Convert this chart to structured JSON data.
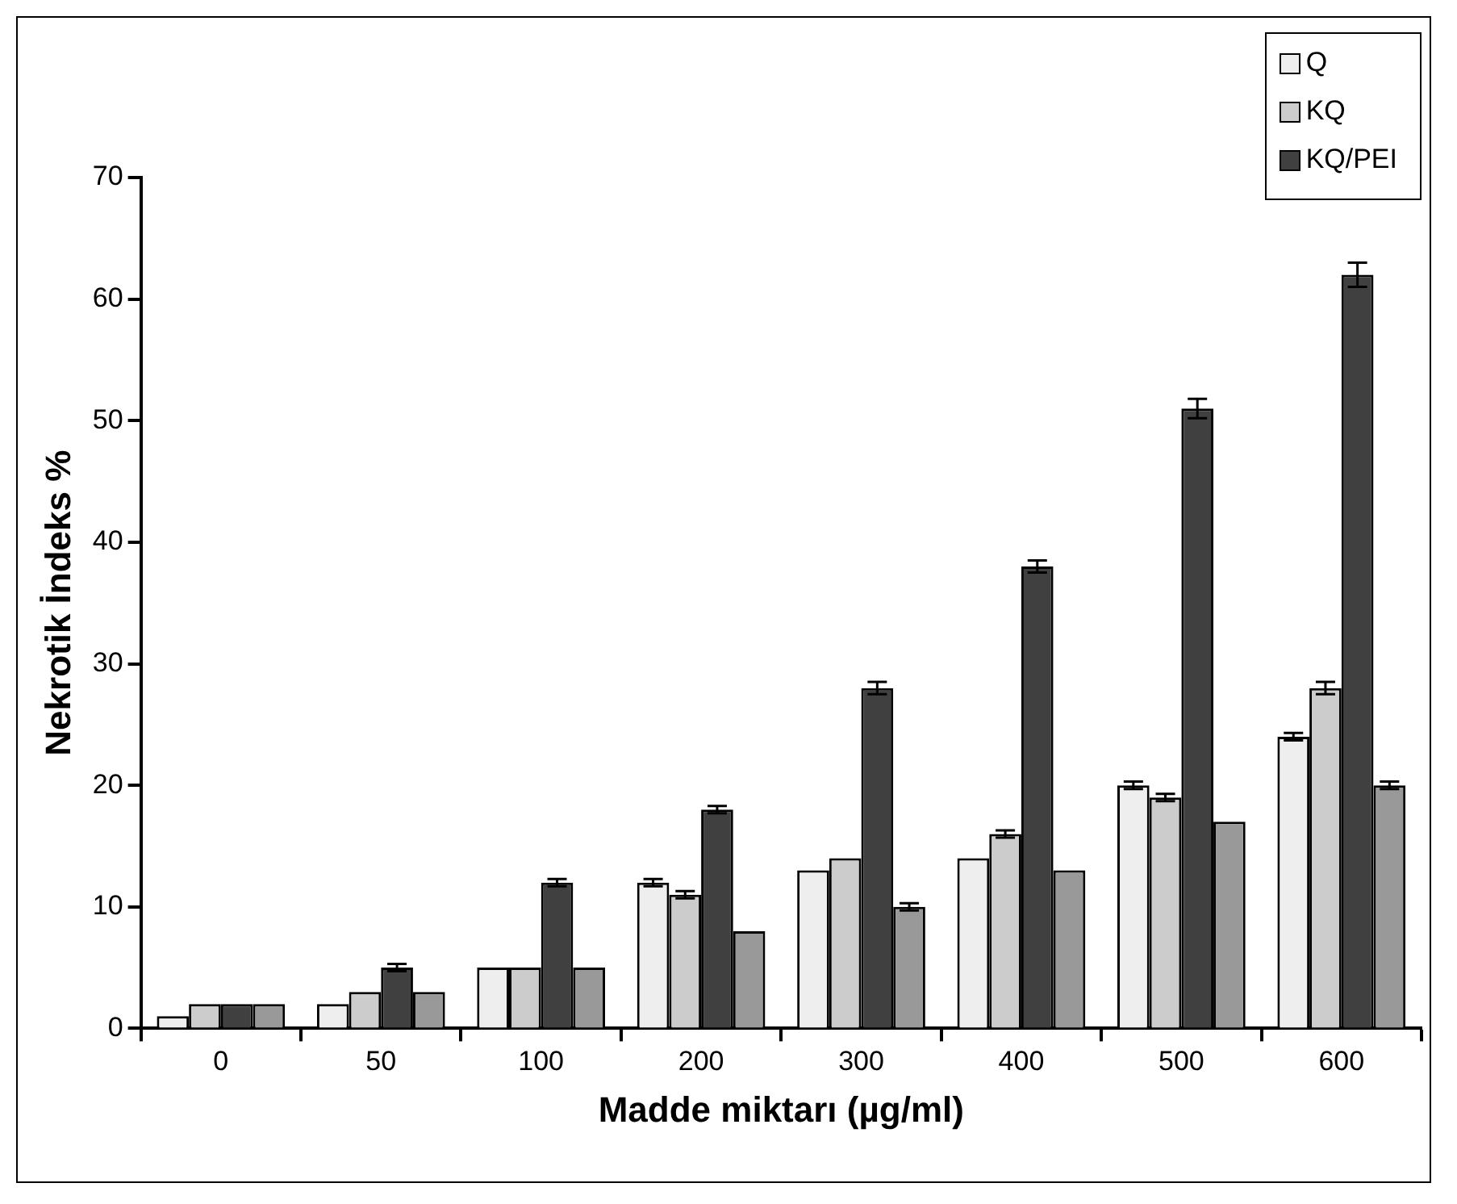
{
  "chart_data": {
    "type": "bar",
    "xlabel": "Madde miktarı (µg/ml)",
    "ylabel": "Nekrotik İndeks %",
    "categories": [
      "0",
      "50",
      "100",
      "200",
      "300",
      "400",
      "500",
      "600"
    ],
    "series": [
      {
        "name": "Q",
        "color": "#eeeeee",
        "values": [
          1,
          2,
          5,
          12,
          13,
          14,
          20,
          24
        ],
        "errors": [
          null,
          null,
          null,
          0.3,
          null,
          null,
          0.3,
          0.3
        ]
      },
      {
        "name": "KQ",
        "color": "#cccccc",
        "values": [
          2,
          3,
          5,
          11,
          14,
          16,
          19,
          28
        ],
        "errors": [
          null,
          null,
          null,
          0.3,
          null,
          0.3,
          0.3,
          0.5
        ]
      },
      {
        "name": "KQ/PEI",
        "color": "#404040",
        "values": [
          2,
          5,
          12,
          18,
          28,
          38,
          51,
          62
        ],
        "errors": [
          null,
          0.3,
          0.3,
          0.3,
          0.5,
          0.5,
          0.8,
          1
        ]
      },
      {
        "color": "#999999",
        "values": [
          2,
          3,
          5,
          8,
          10,
          13,
          17,
          20
        ],
        "errors": [
          null,
          null,
          null,
          null,
          0.3,
          null,
          null,
          0.3
        ]
      }
    ],
    "ylim": [
      0,
      70
    ],
    "yticks": [
      0,
      10,
      20,
      30,
      40,
      50,
      60,
      70
    ],
    "grid": false,
    "legend": "top right"
  }
}
